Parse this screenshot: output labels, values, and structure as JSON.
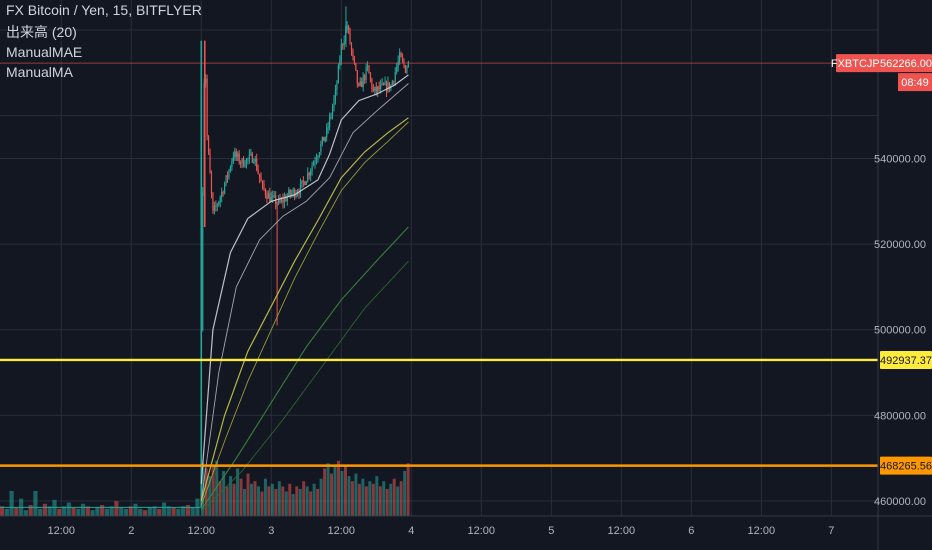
{
  "legend": {
    "title": "FX Bitcoin / Yen, 15, BITFLYER",
    "volume": "出来高 (20)",
    "mae": "ManualMAE",
    "ma": "ManualMA"
  },
  "colors": {
    "background": "#131722",
    "grid": "#2a2e39",
    "up": "#26a69a",
    "down": "#ef5350",
    "price_line": "#ef5350",
    "yellow_line": "#ffeb3b",
    "orange_line": "#ff9800",
    "ma_white": "#d1d4dc",
    "ma_yellow": "#c9c94a",
    "ma_green": "#3d8b3d"
  },
  "price_axis": {
    "ticks": [
      "540000.00",
      "520000.00",
      "500000.00",
      "480000.00",
      "460000.00"
    ],
    "tick_values": [
      540000,
      520000,
      500000,
      480000,
      460000
    ],
    "ylim": [
      456500,
      577000
    ]
  },
  "time_axis": {
    "ticks": [
      "12:00",
      "2",
      "12:00",
      "3",
      "12:00",
      "4",
      "12:00",
      "5",
      "12:00",
      "6",
      "12:00",
      "7"
    ],
    "tick_hours": [
      12,
      24,
      36,
      48,
      60,
      72,
      84,
      96,
      108,
      120,
      132,
      144
    ],
    "xlim_hours": [
      1.5,
      152
    ]
  },
  "badges": {
    "symbol": "FXBTCJPY",
    "last_price": "562266.00",
    "countdown": "08:49",
    "yellow_level": "492937.37",
    "orange_level": "468265.56"
  },
  "chart_data": {
    "type": "candlestick",
    "title": "FX Bitcoin / Yen, 15, BITFLYER",
    "last_price": 562266.0,
    "horizontal_lines": [
      {
        "value": 492937.37,
        "color": "#ffeb3b"
      },
      {
        "value": 468265.56,
        "color": "#ff9800"
      }
    ],
    "price_path": [
      [
        1.5,
        458500
      ],
      [
        35.9,
        458500
      ],
      [
        36.0,
        500000
      ],
      [
        36.3,
        540000
      ],
      [
        36.6,
        567500
      ],
      [
        37.0,
        545000
      ],
      [
        38.0,
        527000
      ],
      [
        39.5,
        532000
      ],
      [
        40.5,
        536000
      ],
      [
        41.5,
        541000
      ],
      [
        43,
        539000
      ],
      [
        45,
        540500
      ],
      [
        46.5,
        533000
      ],
      [
        48,
        530500
      ],
      [
        49.5,
        529500
      ],
      [
        51,
        531500
      ],
      [
        53,
        533000
      ],
      [
        54.5,
        537000
      ],
      [
        56,
        541500
      ],
      [
        57.5,
        546000
      ],
      [
        59,
        555000
      ],
      [
        60,
        566000
      ],
      [
        61,
        571000
      ],
      [
        62,
        563000
      ],
      [
        63,
        556000
      ],
      [
        64.5,
        561000
      ],
      [
        65.5,
        555500
      ],
      [
        67,
        556500
      ],
      [
        68.5,
        557000
      ],
      [
        70,
        563500
      ],
      [
        71,
        561000
      ],
      [
        71.5,
        562266
      ]
    ],
    "ma_lines": [
      {
        "name": "MA1",
        "color": "#d1d4dc",
        "width": 1.2,
        "start": [
          36,
          464000
        ],
        "points": [
          [
            38,
            500000
          ],
          [
            41,
            518000
          ],
          [
            44,
            526000
          ],
          [
            48,
            530000
          ],
          [
            52,
            531500
          ],
          [
            56,
            535000
          ],
          [
            58,
            541000
          ],
          [
            60,
            549000
          ],
          [
            63,
            553500
          ],
          [
            66,
            555000
          ],
          [
            69,
            557000
          ],
          [
            71.5,
            559500
          ]
        ]
      },
      {
        "name": "MA2",
        "color": "#b2b5be",
        "width": 0.9,
        "start": [
          36,
          460000
        ],
        "points": [
          [
            39,
            490000
          ],
          [
            42,
            510000
          ],
          [
            46,
            521000
          ],
          [
            50,
            526500
          ],
          [
            54,
            530000
          ],
          [
            58,
            535500
          ],
          [
            62,
            546000
          ],
          [
            66,
            551000
          ],
          [
            71.5,
            557500
          ]
        ]
      },
      {
        "name": "MA3",
        "color": "#c9c94a",
        "width": 1.2,
        "start": [
          36,
          460000
        ],
        "points": [
          [
            40,
            480000
          ],
          [
            44,
            495000
          ],
          [
            48,
            505500
          ],
          [
            52,
            516000
          ],
          [
            56,
            525500
          ],
          [
            60,
            535500
          ],
          [
            64,
            541500
          ],
          [
            68,
            546000
          ],
          [
            71.5,
            549500
          ]
        ]
      },
      {
        "name": "MA4",
        "color": "#a8a83a",
        "width": 0.9,
        "start": [
          36,
          459000
        ],
        "points": [
          [
            40,
            474000
          ],
          [
            44,
            488000
          ],
          [
            48,
            500000
          ],
          [
            52,
            512000
          ],
          [
            56,
            522500
          ],
          [
            60,
            532500
          ],
          [
            64,
            539000
          ],
          [
            68,
            544000
          ],
          [
            71.5,
            548500
          ]
        ]
      },
      {
        "name": "MA5",
        "color": "#3d8b3d",
        "width": 1.1,
        "start": [
          36,
          458000
        ],
        "points": [
          [
            42,
            470000
          ],
          [
            48,
            483000
          ],
          [
            54,
            496000
          ],
          [
            60,
            507000
          ],
          [
            66,
            516000
          ],
          [
            71.5,
            524000
          ]
        ]
      },
      {
        "name": "MA6",
        "color": "#2f6b2f",
        "width": 0.9,
        "start": [
          36,
          457500
        ],
        "points": [
          [
            43,
            467000
          ],
          [
            50,
            479000
          ],
          [
            57,
            492000
          ],
          [
            64,
            505000
          ],
          [
            71.5,
            516000
          ]
        ]
      }
    ],
    "volume_before": [
      0.3,
      0.2,
      0.9,
      0.25,
      0.6,
      0.15,
      0.35,
      0.9,
      0.2,
      0.4,
      0.3,
      0.55,
      0.2,
      0.3,
      0.45,
      0.25,
      0.2,
      0.4,
      0.3,
      0.15,
      0.25,
      0.35,
      0.2,
      0.3,
      0.5,
      0.25,
      0.2,
      0.3,
      0.4,
      0.2,
      0.15,
      0.25,
      0.3,
      0.2,
      0.45,
      0.3,
      0.25,
      0.2,
      0.3,
      0.35,
      0.25,
      0.6
    ],
    "volume_after": [
      0.95,
      0.85,
      0.7,
      0.9,
      1.0,
      0.6,
      0.8,
      0.5,
      0.7,
      0.55,
      0.85,
      0.65,
      0.45,
      0.75,
      0.55,
      0.6,
      0.5,
      0.4,
      0.65,
      0.5,
      0.55,
      0.45,
      0.6,
      0.5,
      0.4,
      0.55,
      0.35,
      0.5,
      0.45,
      0.6,
      0.5,
      0.4,
      0.55,
      0.45,
      0.65,
      0.85,
      0.95,
      0.75,
      0.9,
      1.0,
      0.8,
      0.9,
      0.7,
      0.6,
      0.75,
      0.55,
      0.65,
      0.5,
      0.6,
      0.55,
      0.7,
      0.5,
      0.6,
      0.45,
      0.55,
      0.65,
      0.5,
      0.6,
      0.8,
      0.95
    ],
    "volume_ratio_max": 0.68
  }
}
